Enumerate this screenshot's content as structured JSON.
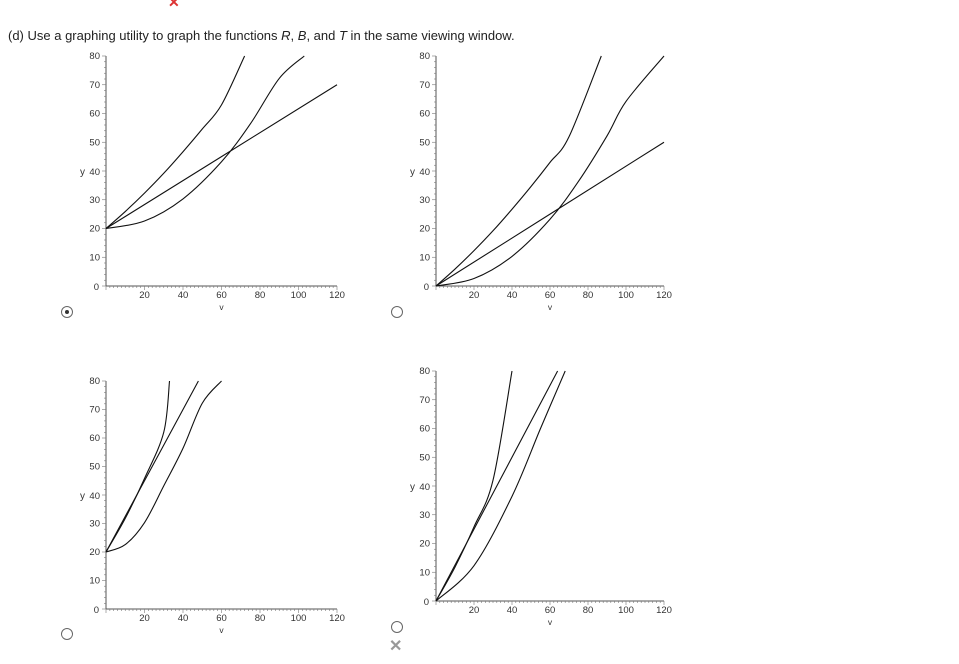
{
  "question": {
    "prefix": "(d) Use a graphing utility to graph the functions ",
    "f1": "R",
    "sep1": ", ",
    "f2": "B",
    "sep2": ", and ",
    "f3": "T",
    "suffix": " in the same viewing window."
  },
  "marks": {
    "top": "✕",
    "wrong": "✕"
  },
  "options": [
    {
      "id": "a",
      "selected": true
    },
    {
      "id": "b",
      "selected": false
    },
    {
      "id": "c",
      "selected": false
    },
    {
      "id": "d",
      "selected": false
    }
  ],
  "chart_data": [
    {
      "type": "line",
      "xlabel": "v",
      "ylabel": "y",
      "xlim": [
        0,
        120
      ],
      "ylim": [
        0,
        80
      ],
      "xticks": [
        "20",
        "40",
        "60",
        "80",
        "100",
        "120"
      ],
      "yticks": [
        "10",
        "20",
        "30",
        "40",
        "50",
        "60",
        "70",
        "80"
      ],
      "y_origin_label": "0",
      "series": [
        {
          "x": [
            0,
            10,
            20,
            30,
            40,
            50,
            60,
            72
          ],
          "y": [
            20,
            25.9,
            32.3,
            39.2,
            46.7,
            54.6,
            63.0,
            80
          ]
        },
        {
          "x": [
            0,
            20,
            40,
            60,
            75,
            90,
            103
          ],
          "y": [
            20,
            22.6,
            30.3,
            43.2,
            56.4,
            72.2,
            80
          ]
        },
        {
          "x": [
            0,
            120
          ],
          "y": [
            20,
            70
          ]
        }
      ]
    },
    {
      "type": "line",
      "xlabel": "v",
      "ylabel": "y",
      "xlim": [
        0,
        120
      ],
      "ylim": [
        0,
        80
      ],
      "xticks": [
        "20",
        "40",
        "60",
        "80",
        "100",
        "120"
      ],
      "yticks": [
        "10",
        "20",
        "30",
        "40",
        "50",
        "60",
        "70",
        "80"
      ],
      "y_origin_label": "0",
      "series": [
        {
          "x": [
            0,
            10,
            20,
            30,
            40,
            50,
            60,
            70,
            87
          ],
          "y": [
            0,
            5.9,
            12.3,
            19.2,
            26.7,
            34.6,
            43.0,
            51.9,
            80
          ]
        },
        {
          "x": [
            0,
            20,
            40,
            60,
            75,
            90,
            100,
            120
          ],
          "y": [
            0,
            2.6,
            10.3,
            23.2,
            36.4,
            52.2,
            64.2,
            80
          ]
        },
        {
          "x": [
            0,
            120
          ],
          "y": [
            0,
            50
          ]
        }
      ]
    },
    {
      "type": "line",
      "xlabel": "v",
      "ylabel": "y",
      "xlim": [
        0,
        120
      ],
      "ylim": [
        0,
        80
      ],
      "xticks": [
        "20",
        "40",
        "60",
        "80",
        "100",
        "120"
      ],
      "yticks": [
        "10",
        "20",
        "30",
        "40",
        "50",
        "60",
        "70",
        "80"
      ],
      "y_origin_label": "0",
      "series": [
        {
          "x": [
            0,
            10,
            20,
            30,
            33
          ],
          "y": [
            20,
            31.8,
            45.8,
            62.0,
            80
          ]
        },
        {
          "x": [
            0,
            48
          ],
          "y": [
            20,
            80
          ]
        },
        {
          "x": [
            0,
            10,
            20,
            30,
            40,
            50,
            60
          ],
          "y": [
            20,
            22.6,
            30.3,
            43.2,
            56.4,
            72.2,
            80
          ]
        }
      ]
    },
    {
      "type": "line",
      "xlabel": "v",
      "ylabel": "y",
      "xlim": [
        0,
        120
      ],
      "ylim": [
        0,
        80
      ],
      "xticks": [
        "20",
        "40",
        "60",
        "80",
        "100",
        "120"
      ],
      "yticks": [
        "10",
        "20",
        "30",
        "40",
        "50",
        "60",
        "70",
        "80"
      ],
      "y_origin_label": "0",
      "series": [
        {
          "x": [
            0,
            10,
            20,
            30,
            40
          ],
          "y": [
            0,
            11.8,
            25.8,
            42.0,
            80
          ]
        },
        {
          "x": [
            0,
            64
          ],
          "y": [
            0,
            80
          ]
        },
        {
          "x": [
            0,
            20,
            40,
            55,
            68
          ],
          "y": [
            0,
            12.3,
            36.4,
            60.0,
            80
          ]
        }
      ]
    }
  ]
}
